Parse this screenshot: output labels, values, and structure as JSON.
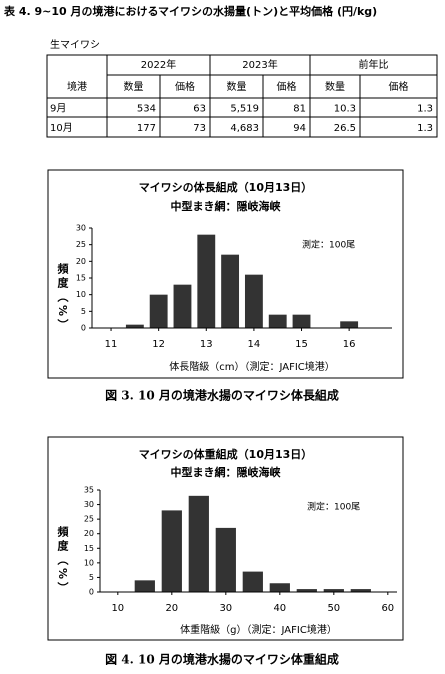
{
  "title": "表 4. 9~10 月の境港におけるマイワシの水揚量(トン)と平均価格 (円/kg)",
  "table": {
    "label": "生マイワシ",
    "header": [
      "2022年",
      "2023年",
      "前年比"
    ],
    "row_header": "境港",
    "subheader": [
      "数量",
      "価格",
      "数量",
      "価格",
      "数量",
      "価格"
    ],
    "rows": [
      [
        "9月",
        534,
        63,
        "5,519",
        81,
        10.3,
        1.3
      ],
      [
        "10月",
        177,
        73,
        "4,683",
        94,
        26.5,
        1.3
      ]
    ]
  },
  "chart_data": [
    {
      "type": "bar",
      "title": "マイワシの体長組成（10月13日）",
      "subtitle": "中型まき網：隠岐海峡",
      "annotation": "測定：100尾",
      "xlabel": "体長階級（cm）（測定：JAFIC境港）",
      "ylabel": "頻度（%）",
      "color": "#333333",
      "x": [
        11.5,
        12,
        12.5,
        13,
        13.5,
        14,
        14.5,
        15,
        15.5,
        16
      ],
      "values": [
        1,
        10,
        13,
        28,
        22,
        16,
        4,
        4,
        0,
        2
      ],
      "xlim": [
        10.6,
        16.9
      ],
      "xticks": [
        11,
        12,
        13,
        14,
        15,
        16
      ],
      "ylim": [
        0,
        30
      ],
      "yticks": [
        0,
        5,
        10,
        15,
        20,
        25,
        30
      ],
      "caption": "図 3. 10 月の境港水揚のマイワシ体長組成"
    },
    {
      "type": "bar",
      "title": "マイワシの体重組成（10月13日）",
      "subtitle": "中型まき網：隠岐海峡",
      "annotation": "測定：100尾",
      "xlabel": "体重階級（g）（測定：JAFIC境港）",
      "ylabel": "頻度（%）",
      "color": "#333333",
      "x": [
        15,
        20,
        25,
        30,
        35,
        40,
        45,
        50,
        55,
        60
      ],
      "values": [
        4,
        28,
        33,
        22,
        7,
        3,
        1,
        1,
        1,
        0
      ],
      "xlim": [
        6.7,
        61.7
      ],
      "xticks": [
        10,
        20,
        30,
        40,
        50,
        60
      ],
      "ylim": [
        0,
        35
      ],
      "yticks": [
        0,
        5,
        10,
        15,
        20,
        25,
        30,
        35
      ],
      "caption": "図 4. 10 月の境港水揚のマイワシ体重組成"
    }
  ]
}
